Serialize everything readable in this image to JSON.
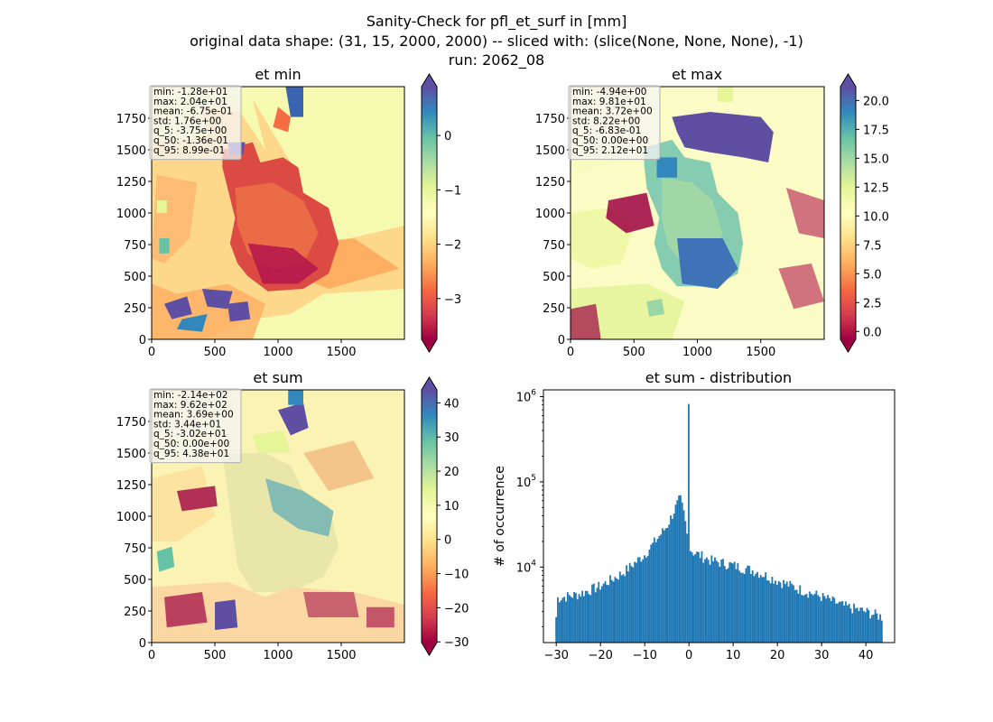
{
  "suptitle": [
    "Sanity-Check for pfl_et_surf in [mm]",
    "original data shape: (31, 15, 2000, 2000) -- sliced with: (slice(None, None, None), -1)",
    "run: 2062_08"
  ],
  "colormap": "Spectral",
  "colormap_stops": [
    "#9e0142",
    "#d53e4f",
    "#f46d43",
    "#fdae61",
    "#fee08b",
    "#ffffbf",
    "#e6f598",
    "#abdda4",
    "#66c2a5",
    "#3288bd",
    "#5e4fa2"
  ],
  "chart_data": [
    {
      "type": "heatmap",
      "title": "et min",
      "xlim": [
        0,
        2000
      ],
      "ylim": [
        0,
        2000
      ],
      "xticks": [
        0,
        500,
        1000,
        1500
      ],
      "yticks": [
        0,
        250,
        500,
        750,
        1000,
        1250,
        1500,
        1750
      ],
      "colorbar": {
        "vmin": -3.75,
        "vmax": 0.899,
        "ticks": [
          0,
          -1,
          -2,
          -3
        ],
        "extend": "both"
      },
      "stats": [
        "min: -1.28e+01",
        "max: 2.04e+01",
        "mean: -6.75e-01",
        "std: 1.76e+00",
        "q_5: -3.75e+00",
        "q_50: -1.36e-01",
        "q_95: 8.99e-01"
      ]
    },
    {
      "type": "heatmap",
      "title": "et max",
      "xlim": [
        0,
        2000
      ],
      "ylim": [
        0,
        2000
      ],
      "xticks": [
        0,
        500,
        1000,
        1500
      ],
      "yticks": [
        0,
        250,
        500,
        750,
        1000,
        1250,
        1500,
        1750
      ],
      "colorbar": {
        "vmin": -0.683,
        "vmax": 21.2,
        "ticks": [
          "0.0",
          "2.5",
          "5.0",
          "7.5",
          "10.0",
          "12.5",
          "15.0",
          "17.5",
          "20.0"
        ],
        "extend": "both"
      },
      "stats": [
        "min: -4.94e+00",
        "max: 9.81e+01",
        "mean: 3.72e+00",
        "std: 8.22e+00",
        "q_5: -6.83e-01",
        "q_50: 0.00e+00",
        "q_95: 2.12e+01"
      ]
    },
    {
      "type": "heatmap",
      "title": "et sum",
      "xlim": [
        0,
        2000
      ],
      "ylim": [
        0,
        2000
      ],
      "xticks": [
        0,
        500,
        1000,
        1500
      ],
      "yticks": [
        0,
        250,
        500,
        750,
        1000,
        1250,
        1500,
        1750
      ],
      "colorbar": {
        "vmin": -30.2,
        "vmax": 43.8,
        "ticks": [
          40,
          30,
          20,
          10,
          0,
          -10,
          -20,
          -30
        ],
        "extend": "both"
      },
      "stats": [
        "min: -2.14e+02",
        "max: 9.62e+02",
        "mean: 3.69e+00",
        "std: 3.44e+01",
        "q_5: -3.02e+01",
        "q_50: 0.00e+00",
        "q_95: 4.38e+01"
      ]
    },
    {
      "type": "bar",
      "title": "et sum - distribution",
      "ylabel": "# of occurrence",
      "xlabel": "",
      "yscale": "log",
      "xlim": [
        -32.9,
        46.5
      ],
      "ylim": [
        1300,
        1200000
      ],
      "xticks": [
        -30,
        -20,
        -10,
        0,
        10,
        20,
        30,
        40
      ],
      "yticks": [
        {
          "value": 10000,
          "label": "10^4"
        },
        {
          "value": 100000,
          "label": "10^5"
        },
        {
          "value": 1000000,
          "label": "10^6"
        }
      ],
      "color": "#1f77b4",
      "bins": {
        "start": -30.2,
        "end": 43.8
      },
      "peak": {
        "x": 0,
        "value": 820000
      },
      "envelope": [
        {
          "x": -30,
          "value": 4300
        },
        {
          "x": -25,
          "value": 4800
        },
        {
          "x": -20,
          "value": 6000
        },
        {
          "x": -15,
          "value": 8500
        },
        {
          "x": -10,
          "value": 14000
        },
        {
          "x": -5,
          "value": 30000
        },
        {
          "x": -3,
          "value": 50000
        },
        {
          "x": -2,
          "value": 65000
        },
        {
          "x": -1,
          "value": 40000
        },
        {
          "x": 0,
          "value": 17000
        },
        {
          "x": 1,
          "value": 15000
        },
        {
          "x": 5,
          "value": 12000
        },
        {
          "x": 10,
          "value": 10500
        },
        {
          "x": 15,
          "value": 9000
        },
        {
          "x": 20,
          "value": 7000
        },
        {
          "x": 25,
          "value": 5500
        },
        {
          "x": 30,
          "value": 4500
        },
        {
          "x": 35,
          "value": 3500
        },
        {
          "x": 40,
          "value": 3000
        },
        {
          "x": 43.8,
          "value": 2600
        }
      ]
    }
  ]
}
